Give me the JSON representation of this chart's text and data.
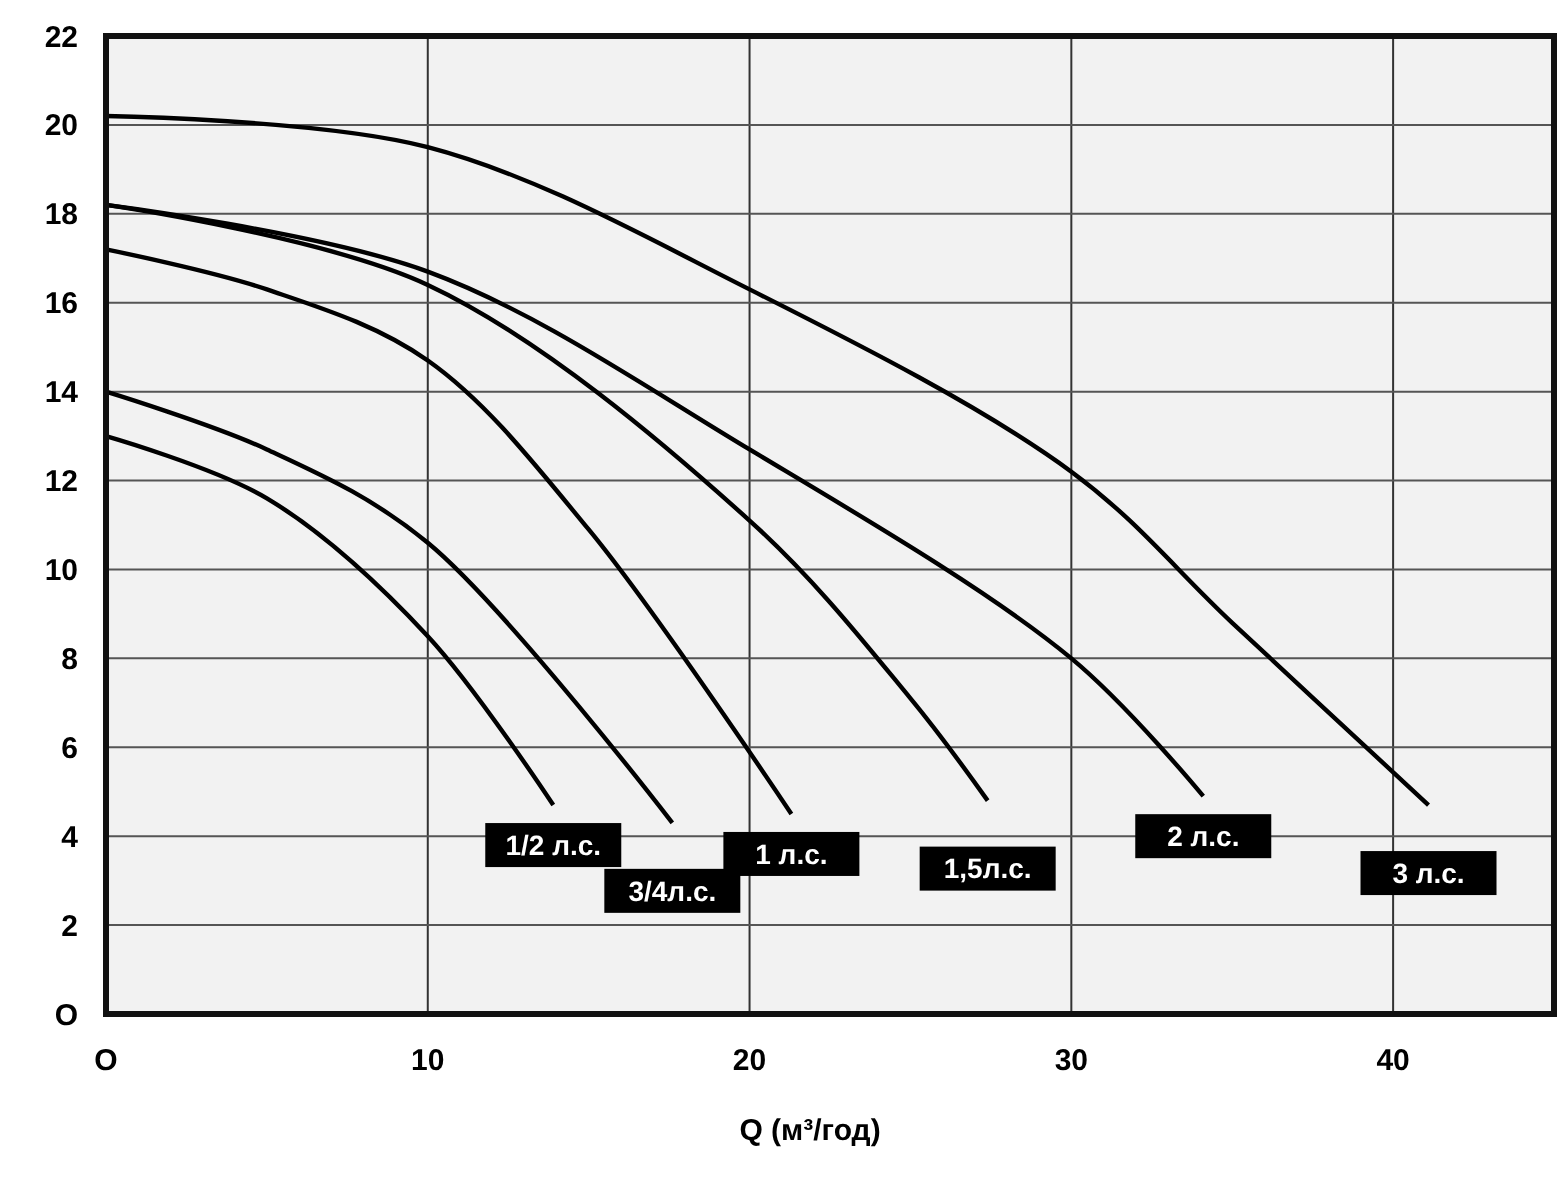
{
  "chart_data": {
    "type": "line",
    "xlabel": "Q (м³/год)",
    "xlim": [
      0,
      45
    ],
    "ylim": [
      0,
      22
    ],
    "xticks": [
      {
        "value": 0,
        "label": "O"
      },
      10,
      20,
      30,
      40
    ],
    "yticks": [
      {
        "value": 0,
        "label": "O"
      },
      2,
      4,
      6,
      8,
      10,
      12,
      14,
      16,
      18,
      20,
      22
    ],
    "grid": true,
    "marker": "none",
    "line_style": "solid",
    "series": [
      {
        "name": "1/2 л.с.",
        "color": "#000000",
        "x": [
          0,
          5,
          10,
          13.9
        ],
        "values": [
          13,
          11.6,
          8.5,
          4.7
        ]
      },
      {
        "name": "3/4л.с.",
        "color": "#000000",
        "x": [
          0,
          5,
          10,
          17.6
        ],
        "values": [
          14,
          12.7,
          10.6,
          4.3
        ]
      },
      {
        "name": "1 л.с.",
        "color": "#000000",
        "x": [
          0,
          5,
          10,
          15,
          21.3
        ],
        "values": [
          17.2,
          16.3,
          14.7,
          10.9,
          4.5
        ]
      },
      {
        "name": "1,5л.с.",
        "color": "#000000",
        "x": [
          0,
          10,
          20,
          25,
          27.4
        ],
        "values": [
          18.2,
          16.4,
          11.1,
          7.1,
          4.8
        ]
      },
      {
        "name": "2 л.с.",
        "color": "#000000",
        "x": [
          0,
          10,
          20,
          30,
          34.1
        ],
        "values": [
          18.2,
          16.7,
          12.7,
          8,
          4.9
        ]
      },
      {
        "name": "3 л.с.",
        "color": "#000000",
        "x": [
          0,
          10,
          20,
          30,
          35,
          41.1
        ],
        "values": [
          20.2,
          19.5,
          16.3,
          12.2,
          8.8,
          4.7
        ]
      }
    ]
  }
}
